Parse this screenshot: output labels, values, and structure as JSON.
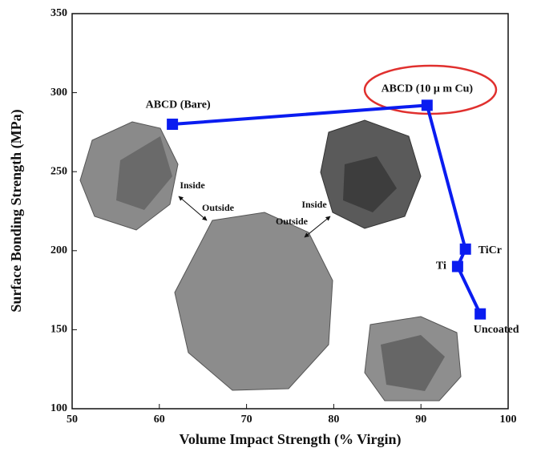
{
  "chart_data": {
    "type": "line",
    "x_label": "Volume Impact Strength (% Virgin)",
    "y_label": "Surface Bonding Strength (MPa)",
    "x": [
      61.5,
      90.7,
      95.1,
      94.2,
      96.8
    ],
    "series": [
      {
        "color": "#0a1cf0",
        "values": [
          280,
          292,
          201,
          190,
          160
        ]
      }
    ],
    "point_labels": [
      "ABCD (Bare)",
      "ABCD (10 μ m Cu)",
      "TiCr",
      "Ti",
      "Uncoated"
    ],
    "annotations": [
      "Inside",
      "Outside",
      "Inside",
      "Outside"
    ],
    "xlim": [
      50,
      100
    ],
    "xticks": [
      50,
      60,
      70,
      80,
      90,
      100
    ],
    "ylim": [
      100,
      350
    ],
    "yticks": [
      100,
      150,
      200,
      250,
      300,
      350
    ]
  }
}
